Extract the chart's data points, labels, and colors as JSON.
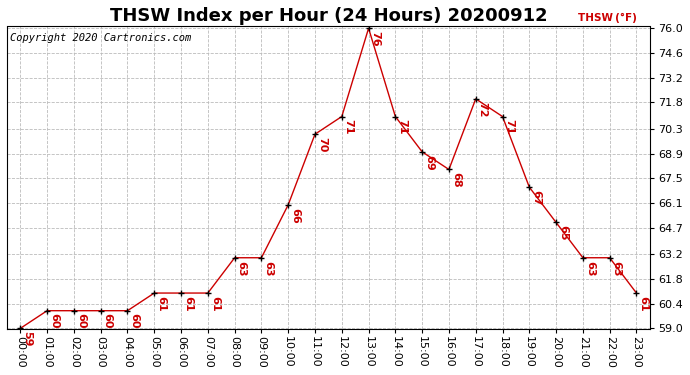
{
  "title": "THSW Index per Hour (24 Hours) 20200912",
  "ylabel": "THSW (°F)",
  "copyright": "Copyright 2020 Cartronics.com",
  "background_color": "#ffffff",
  "line_color": "#cc0000",
  "marker_color": "#000000",
  "label_color": "#cc0000",
  "hours": [
    "00:00",
    "01:00",
    "02:00",
    "03:00",
    "04:00",
    "05:00",
    "06:00",
    "07:00",
    "08:00",
    "09:00",
    "10:00",
    "11:00",
    "12:00",
    "13:00",
    "14:00",
    "15:00",
    "16:00",
    "17:00",
    "18:00",
    "19:00",
    "20:00",
    "21:00",
    "22:00",
    "23:00"
  ],
  "values": [
    59,
    60,
    60,
    60,
    60,
    61,
    61,
    61,
    63,
    63,
    66,
    70,
    71,
    76,
    71,
    69,
    68,
    72,
    71,
    67,
    65,
    63,
    63,
    61
  ],
  "ylim_min": 59.0,
  "ylim_max": 76.0,
  "yticks": [
    59.0,
    60.4,
    61.8,
    63.2,
    64.7,
    66.1,
    67.5,
    68.9,
    70.3,
    71.8,
    73.2,
    74.6,
    76.0
  ],
  "grid_color": "#bbbbbb",
  "title_fontsize": 13,
  "label_fontsize": 7.5,
  "tick_fontsize": 8,
  "copyright_fontsize": 7.5,
  "value_label_fontsize": 8
}
